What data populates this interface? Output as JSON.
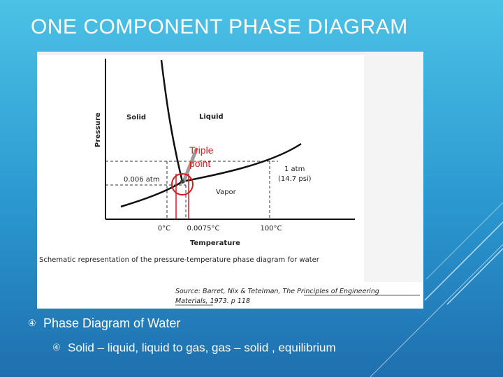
{
  "slide": {
    "title": "ONE COMPONENT PHASE DIAGRAM"
  },
  "diagram": {
    "axis": {
      "y_label": "Pressure",
      "x_label": "Temperature"
    },
    "regions": {
      "solid": "Solid",
      "liquid": "Liquid",
      "vapor": "Vapor"
    },
    "pressure_marks": {
      "low": "0.006 atm",
      "high_line1": "1 atm",
      "high_line2": "(14.7 psi)"
    },
    "temperature_marks": [
      "0°C",
      "0.0075°C",
      "100°C"
    ],
    "annotation": {
      "line1": "Triple",
      "line2": "point",
      "color": "#d31f1f"
    },
    "caption": "Schematic representation of the pressure-temperature phase diagram for water",
    "source_line1": "Source: Barret, Nix & Tetelman, The Principles of Engineering",
    "source_line2": "Materials, 1973. p 118"
  },
  "bullets": [
    {
      "level": 1,
      "text": "Phase Diagram of Water",
      "icon": "circled-digit-bullet-icon"
    },
    {
      "level": 2,
      "text": "Solid – liquid, liquid to gas, gas – solid , equilibrium",
      "icon": "circled-digit-bullet-icon"
    }
  ],
  "bullet_glyph": "④"
}
